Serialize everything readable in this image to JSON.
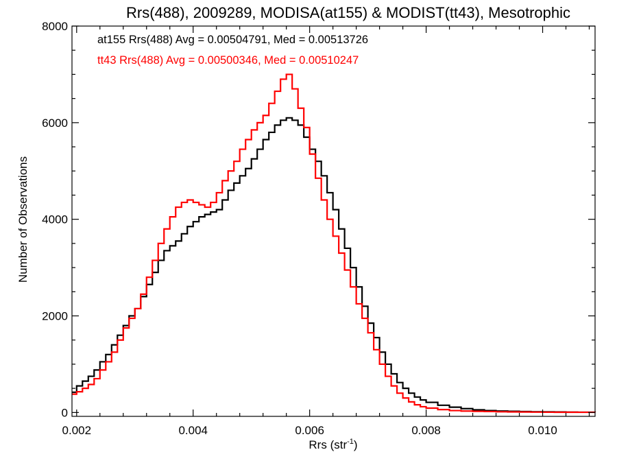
{
  "chart_data": {
    "type": "line",
    "style": "step-histogram",
    "title": "Rrs(488), 2009289, MODISA(at155) & MODIST(tt43), Mesotrophic",
    "xlabel": "Rrs (str",
    "xlabel_sup": "-1",
    "xlabel_close": ")",
    "ylabel": "Number of Observations",
    "xlim": [
      0.00192,
      0.0109
    ],
    "ylim": [
      -80,
      8000
    ],
    "xticks": [
      0.002,
      0.004,
      0.006,
      0.008,
      0.01
    ],
    "xtick_labels": [
      "0.002",
      "0.004",
      "0.006",
      "0.008",
      "0.010"
    ],
    "yticks": [
      0,
      2000,
      4000,
      6000,
      8000
    ],
    "ytick_labels": [
      "0",
      "2000",
      "4000",
      "6000",
      "8000"
    ],
    "grid": false,
    "legend_position": "top-left",
    "series": [
      {
        "name": "at155",
        "color": "#000000",
        "legend": "at155 Rrs(488) Avg = 0.00504791, Med = 0.00513726",
        "x": [
          0.00192,
          0.002,
          0.0021,
          0.0022,
          0.0023,
          0.0024,
          0.0025,
          0.0026,
          0.0027,
          0.0028,
          0.0029,
          0.003,
          0.0031,
          0.0032,
          0.0033,
          0.0034,
          0.0035,
          0.0036,
          0.0037,
          0.0038,
          0.0039,
          0.004,
          0.0041,
          0.0042,
          0.0043,
          0.0044,
          0.0045,
          0.0046,
          0.0047,
          0.0048,
          0.0049,
          0.005,
          0.0051,
          0.0052,
          0.0053,
          0.0054,
          0.0055,
          0.0056,
          0.0057,
          0.0058,
          0.0059,
          0.006,
          0.0061,
          0.0062,
          0.0063,
          0.0064,
          0.0065,
          0.0066,
          0.0067,
          0.0068,
          0.0069,
          0.007,
          0.0071,
          0.0072,
          0.0073,
          0.0074,
          0.0075,
          0.0076,
          0.0077,
          0.0078,
          0.0079,
          0.008,
          0.0082,
          0.0084,
          0.0086,
          0.0088,
          0.009,
          0.0092,
          0.0094,
          0.0096,
          0.0098,
          0.01,
          0.0102,
          0.0104,
          0.0106,
          0.0109
        ],
        "y": [
          420,
          550,
          650,
          750,
          880,
          1050,
          1200,
          1400,
          1600,
          1800,
          2000,
          2150,
          2400,
          2650,
          2900,
          3150,
          3350,
          3450,
          3550,
          3700,
          3850,
          3950,
          4050,
          4100,
          4150,
          4200,
          4400,
          4600,
          4750,
          4900,
          5050,
          5250,
          5450,
          5650,
          5800,
          5950,
          6050,
          6100,
          6050,
          5950,
          5700,
          5450,
          5200,
          4900,
          4550,
          4200,
          3800,
          3400,
          3000,
          2600,
          2200,
          1850,
          1550,
          1250,
          1000,
          800,
          620,
          500,
          400,
          320,
          260,
          210,
          150,
          110,
          80,
          55,
          40,
          30,
          25,
          20,
          15,
          12,
          10,
          8,
          6,
          5
        ]
      },
      {
        "name": "tt43",
        "color": "#ff0000",
        "legend": "tt43 Rrs(488) Avg = 0.00500346, Med = 0.00510247",
        "x": [
          0.00192,
          0.002,
          0.0021,
          0.0022,
          0.0023,
          0.0024,
          0.0025,
          0.0026,
          0.0027,
          0.0028,
          0.0029,
          0.003,
          0.0031,
          0.0032,
          0.0033,
          0.0034,
          0.0035,
          0.0036,
          0.0037,
          0.0038,
          0.0039,
          0.004,
          0.0041,
          0.0042,
          0.0043,
          0.0044,
          0.0045,
          0.0046,
          0.0047,
          0.0048,
          0.0049,
          0.005,
          0.0051,
          0.0052,
          0.0053,
          0.0054,
          0.0055,
          0.0056,
          0.0057,
          0.0058,
          0.0059,
          0.006,
          0.0061,
          0.0062,
          0.0063,
          0.0064,
          0.0065,
          0.0066,
          0.0067,
          0.0068,
          0.0069,
          0.007,
          0.0071,
          0.0072,
          0.0073,
          0.0074,
          0.0075,
          0.0076,
          0.0077,
          0.0078,
          0.0079,
          0.008,
          0.0082,
          0.0084,
          0.0086,
          0.0088,
          0.009,
          0.0092,
          0.0094,
          0.0096,
          0.0098,
          0.01,
          0.0102,
          0.0104,
          0.0106,
          0.0109
        ],
        "y": [
          380,
          430,
          500,
          580,
          700,
          880,
          1050,
          1250,
          1500,
          1750,
          1950,
          2150,
          2450,
          2800,
          3150,
          3500,
          3800,
          4050,
          4250,
          4350,
          4400,
          4350,
          4300,
          4250,
          4350,
          4550,
          4800,
          5000,
          5200,
          5450,
          5650,
          5850,
          6000,
          6150,
          6400,
          6650,
          6900,
          7000,
          6700,
          6300,
          5900,
          5350,
          4850,
          4400,
          4000,
          3650,
          3300,
          2950,
          2600,
          2250,
          1950,
          1650,
          1300,
          1000,
          750,
          550,
          400,
          300,
          220,
          160,
          120,
          90,
          60,
          40,
          30,
          25,
          20,
          15,
          12,
          10,
          8,
          6,
          5,
          5,
          4,
          3
        ]
      }
    ]
  }
}
